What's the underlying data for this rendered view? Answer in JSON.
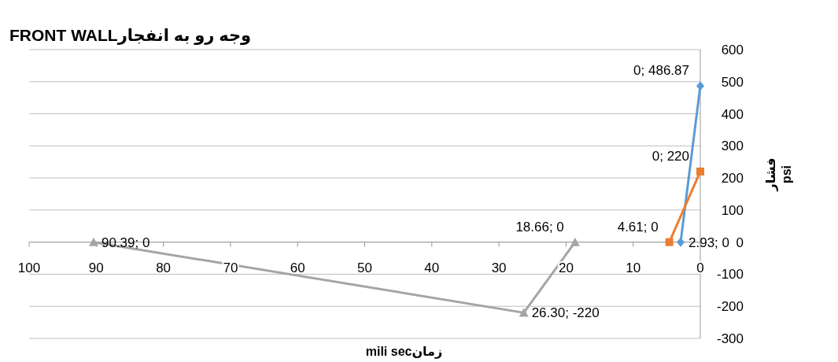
{
  "chart_data": {
    "type": "line",
    "title": "FRONT WALLوجه رو به انفجار",
    "xlabel": "mili secزمان",
    "ylabel": "فشار psi",
    "xlim": [
      100,
      0
    ],
    "xticks": [
      100,
      90,
      80,
      70,
      60,
      50,
      40,
      30,
      20,
      10,
      0
    ],
    "ylim": [
      -300,
      600
    ],
    "yticks": [
      -300,
      -200,
      -100,
      0,
      100,
      200,
      300,
      400,
      500,
      600
    ],
    "grid": "y",
    "line_style": "solid",
    "series": [
      {
        "color": "#5b9bd5",
        "marker": "diamond",
        "x": [
          2.93,
          0
        ],
        "values": [
          0,
          486.87
        ],
        "value_labels": [
          "2.93; 0",
          "0; 486.87"
        ]
      },
      {
        "color": "#ed7d31",
        "marker": "square",
        "x": [
          4.61,
          0
        ],
        "values": [
          0,
          220
        ],
        "value_labels": [
          "4.61; 0",
          "0; 220"
        ]
      },
      {
        "color": "#a5a5a5",
        "marker": "triangle",
        "x": [
          90.39,
          26.3,
          18.66
        ],
        "values": [
          0,
          -220,
          0
        ],
        "value_labels": [
          "90.39; 0",
          "26.30; -220",
          "18.66; 0"
        ]
      }
    ]
  }
}
